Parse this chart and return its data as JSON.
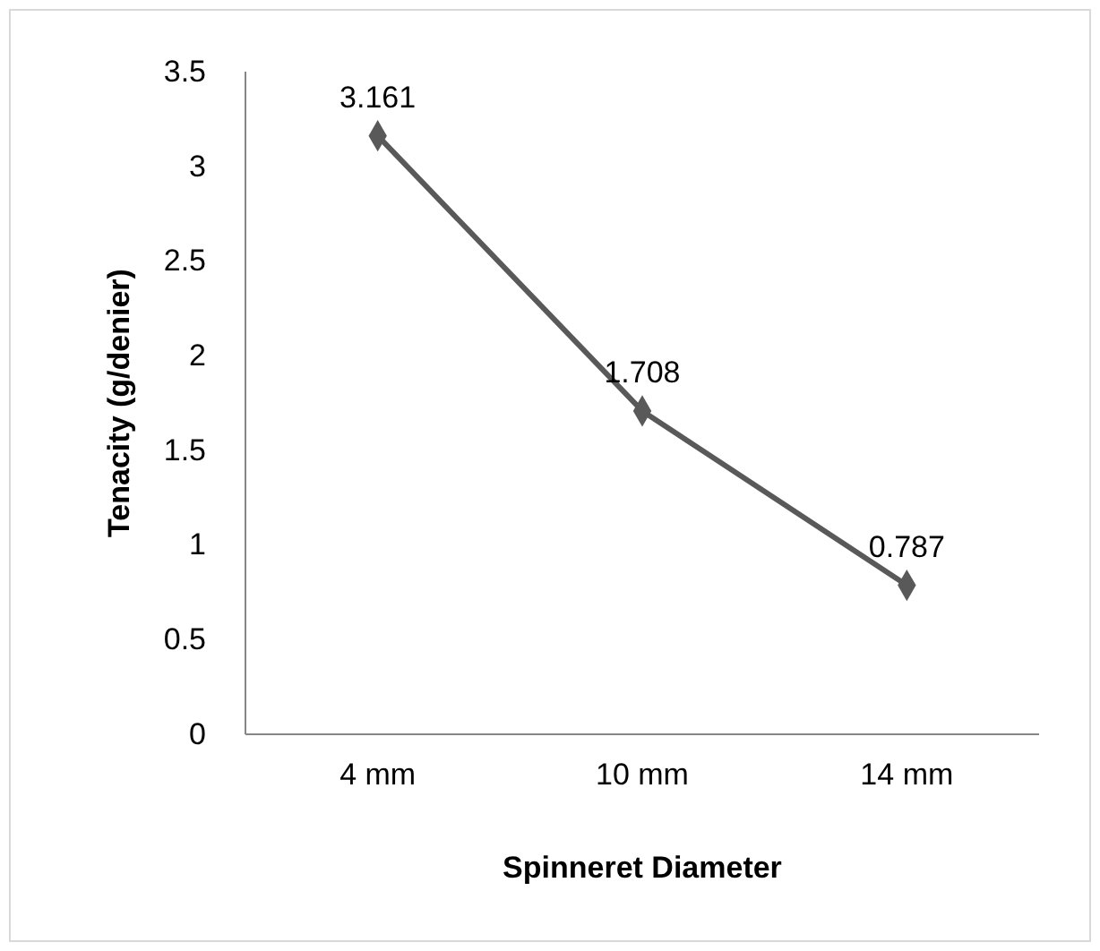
{
  "chart_data": {
    "type": "line",
    "xlabel": "Spinneret Diameter",
    "ylabel": "Tenacity (g/denier)",
    "categories": [
      "4 mm",
      "10 mm",
      "14 mm"
    ],
    "series": [
      {
        "color": "#595959",
        "values": [
          3.161,
          1.708,
          0.787
        ]
      }
    ],
    "ylim": [
      0,
      3.5
    ],
    "yticks": [
      0,
      0.5,
      1,
      1.5,
      2,
      2.5,
      3,
      3.5
    ],
    "value_labels": [
      "3.161",
      "1.708",
      "0.787"
    ],
    "marker": "diamond",
    "grid": false
  }
}
